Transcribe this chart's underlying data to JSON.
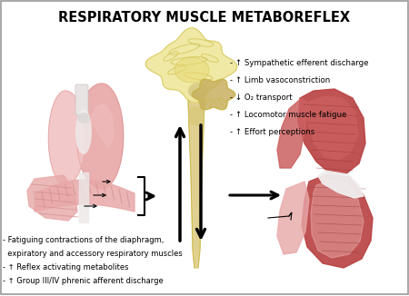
{
  "title": "RESPIRATORY MUSCLE METABOREFLEX",
  "title_fontsize": 10.5,
  "title_fontweight": "bold",
  "background_color": "#ffffff",
  "right_bullets": [
    "- ↑ Sympathetic efferent discharge",
    "- ↑ Limb vasoconstriction",
    "- ↓ O₂ transport",
    "- ↑ Locomotor muscle fatigue",
    "- ↑ Effort perceptions"
  ],
  "bottom_bullets": [
    "- Fatiguing contractions of the diaphragm,",
    "  expiratory and accessory respiratory muscles",
    "- ↑ Reflex activating metabolites",
    "- ↑ Group III/IV phrenic afferent discharge"
  ],
  "arrow_color": "#000000",
  "lung_pink_light": "#f2c2c2",
  "lung_pink_mid": "#e8a8a8",
  "lung_pink_dark": "#d08080",
  "lung_white": "#f5eeee",
  "diaphragm_color": "#d09090",
  "brain_yellow_light": "#f0e8a0",
  "brain_yellow_mid": "#e8d870",
  "brain_yellow_dark": "#c8b840",
  "brain_stem_color": "#e0d090",
  "brain_brown": "#c0a860",
  "muscle_red_dark": "#b84040",
  "muscle_red_mid": "#cc6060",
  "muscle_pink_light": "#e8a8a8",
  "muscle_white": "#f0eeee"
}
